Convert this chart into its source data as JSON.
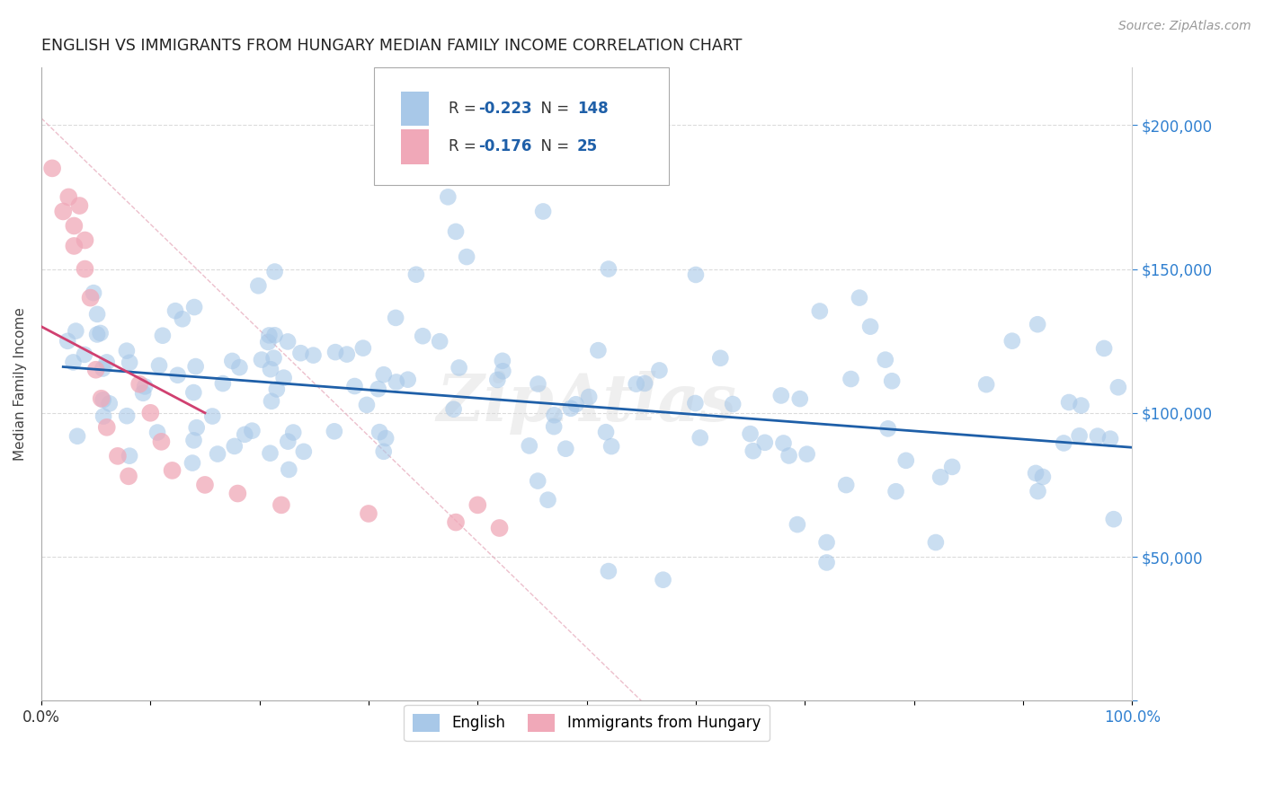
{
  "title": "ENGLISH VS IMMIGRANTS FROM HUNGARY MEDIAN FAMILY INCOME CORRELATION CHART",
  "source_text": "Source: ZipAtlas.com",
  "ylabel": "Median Family Income",
  "xlim": [
    0,
    1.0
  ],
  "ylim": [
    0,
    220000
  ],
  "ytick_positions": [
    0,
    50000,
    100000,
    150000,
    200000
  ],
  "watermark": "ZipAtlas",
  "blue_color": "#a8c8e8",
  "pink_color": "#f0a8b8",
  "blue_line_color": "#1e5fa8",
  "pink_line_color": "#d04070",
  "diag_color": "#e8b0c0",
  "grid_color": "#cccccc",
  "R_blue": -0.223,
  "N_blue": 148,
  "R_pink": -0.176,
  "N_pink": 25,
  "legend_labels": [
    "English",
    "Immigrants from Hungary"
  ],
  "blue_line_x0": 0.02,
  "blue_line_x1": 1.0,
  "blue_line_y0": 116000,
  "blue_line_y1": 88000,
  "pink_line_x0": 0.0,
  "pink_line_x1": 0.15,
  "pink_line_y0": 130000,
  "pink_line_y1": 100000,
  "title_fontsize": 12.5,
  "axis_label_color": "#555555",
  "right_tick_color": "#3080d0"
}
